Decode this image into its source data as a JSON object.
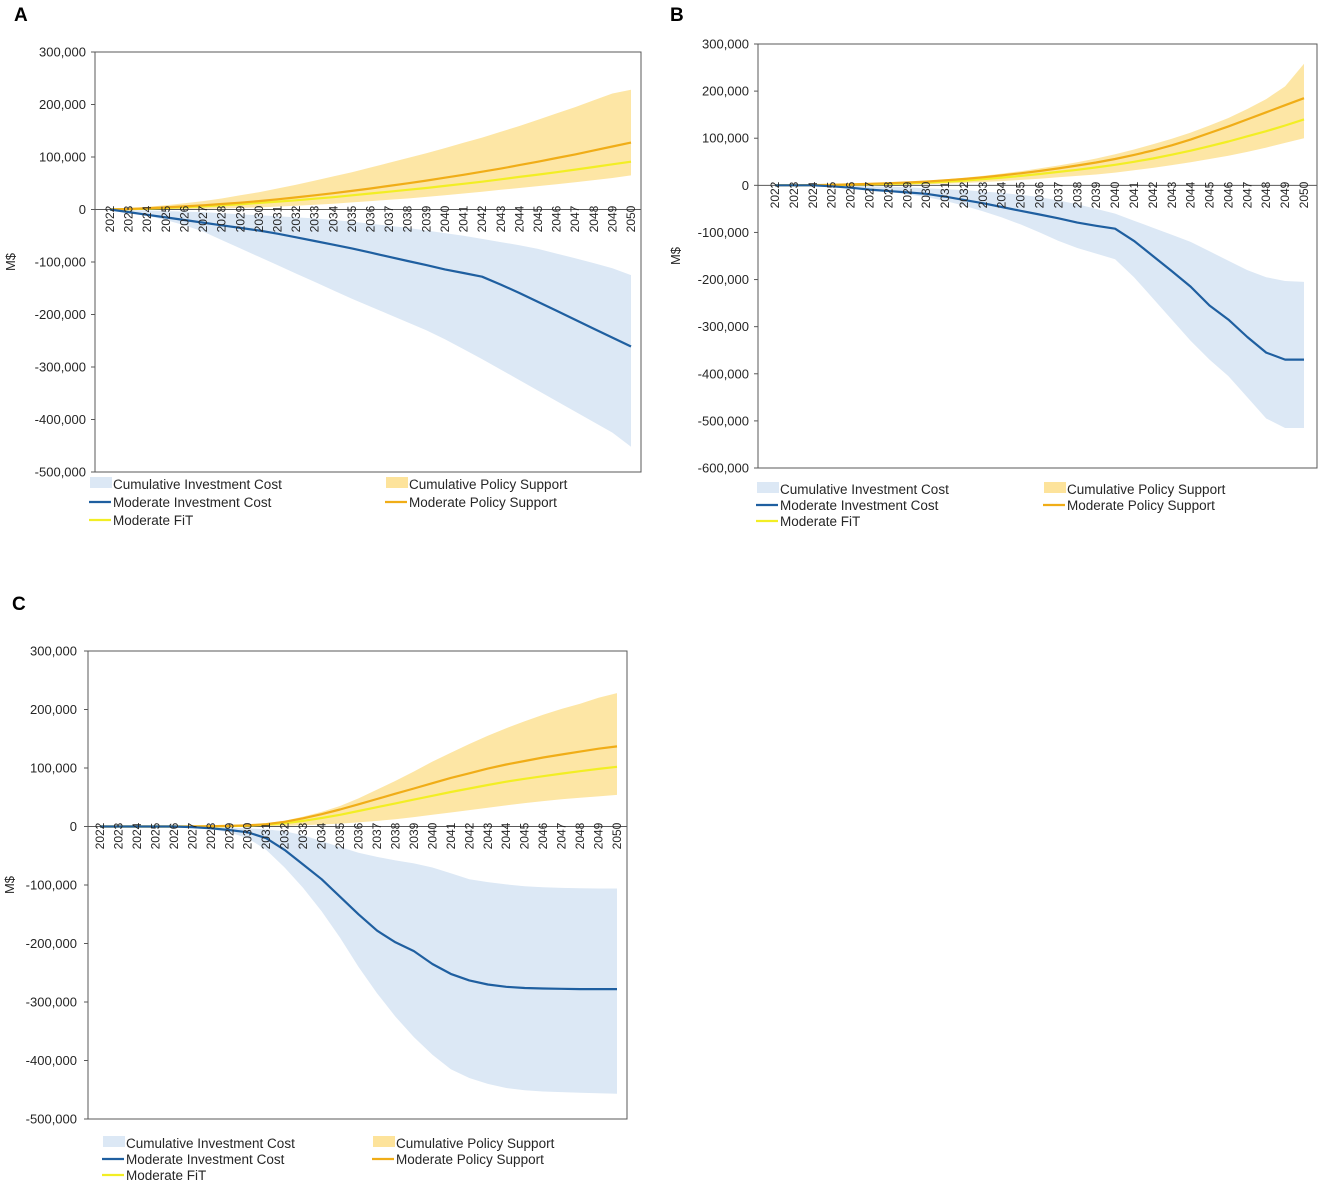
{
  "colors": {
    "band_invest": "#dce8f5",
    "band_policy": "#fde39b",
    "line_invest": "#1f5fa0",
    "line_policy": "#f0ad17",
    "line_fit": "#f2ee24",
    "axis": "#595959"
  },
  "legend_labels": {
    "band_invest": "Cumulative Investment Cost",
    "band_policy": "Cumulative Policy Support",
    "line_invest": "Moderate Investment Cost",
    "line_policy": "Moderate Policy Support",
    "line_fit": "Moderate FiT"
  },
  "chart_data": [
    {
      "panel": "A",
      "type": "line",
      "ylabel": "M$",
      "ylim": [
        -500000,
        300000
      ],
      "yticks": [
        300000,
        200000,
        100000,
        0,
        -100000,
        -200000,
        -300000,
        -400000,
        -500000
      ],
      "ytick_labels": [
        "300,000",
        "200,000",
        "100,000",
        "0",
        "-100,000",
        "-200,000",
        "-300,000",
        "-400,000",
        "-500,000"
      ],
      "categories": [
        "2022",
        "2023",
        "2024",
        "2025",
        "2026",
        "2027",
        "2028",
        "2029",
        "2030",
        "2031",
        "2032",
        "2033",
        "2034",
        "2035",
        "2036",
        "2037",
        "2038",
        "2039",
        "2040",
        "2041",
        "2042",
        "2043",
        "2044",
        "2045",
        "2046",
        "2047",
        "2048",
        "2049",
        "2050"
      ],
      "bands": [
        {
          "name": "Cumulative Investment Cost",
          "low": [
            0,
            -5000,
            -12000,
            -20000,
            -30000,
            -42000,
            -58000,
            -74000,
            -90000,
            -106000,
            -122000,
            -138000,
            -154000,
            -170000,
            -185000,
            -200000,
            -215000,
            -230000,
            -247000,
            -266000,
            -285000,
            -305000,
            -325000,
            -345000,
            -365000,
            -385000,
            -405000,
            -425000,
            -452000
          ],
          "high": [
            0,
            -1000,
            -2000,
            -3000,
            -4000,
            -5000,
            -7000,
            -9000,
            -11000,
            -13000,
            -15000,
            -17000,
            -20000,
            -23000,
            -27000,
            -31000,
            -35000,
            -40000,
            -45000,
            -50000,
            -56000,
            -62000,
            -68000,
            -75000,
            -84000,
            -93000,
            -102000,
            -112000,
            -125000
          ]
        },
        {
          "name": "Cumulative Policy Support",
          "low": [
            0,
            0,
            0,
            300,
            700,
            1300,
            2000,
            3000,
            4000,
            5500,
            7000,
            9000,
            11000,
            13500,
            16000,
            18500,
            21000,
            24000,
            27000,
            30500,
            34000,
            37500,
            41000,
            44500,
            48000,
            52000,
            56000,
            60000,
            65000
          ],
          "high": [
            0,
            2000,
            5000,
            8000,
            12000,
            16000,
            21000,
            27000,
            33000,
            40000,
            47000,
            55000,
            63000,
            71000,
            80000,
            89000,
            98000,
            107000,
            117000,
            127000,
            137000,
            148000,
            159000,
            171000,
            183000,
            195000,
            208000,
            221000,
            228000
          ]
        }
      ],
      "series": [
        {
          "name": "Moderate Investment Cost",
          "values": [
            0,
            -5000,
            -10000,
            -15000,
            -20000,
            -25000,
            -30000,
            -35000,
            -40000,
            -46000,
            -53000,
            -60000,
            -67000,
            -74000,
            -82000,
            -90000,
            -98000,
            -106000,
            -114000,
            -121000,
            -128000,
            -143000,
            -159000,
            -176000,
            -193000,
            -210000,
            -227000,
            -244000,
            -261000
          ]
        },
        {
          "name": "Moderate Policy Support",
          "values": [
            0,
            1000,
            2500,
            4000,
            6000,
            8000,
            10500,
            13000,
            16000,
            19500,
            23000,
            27000,
            31000,
            35500,
            40000,
            45000,
            50000,
            55000,
            60500,
            66000,
            72000,
            78000,
            84500,
            91000,
            98000,
            105000,
            112500,
            120000,
            127500
          ]
        },
        {
          "name": "Moderate FiT",
          "values": [
            0,
            800,
            1800,
            3000,
            4500,
            6000,
            8000,
            10000,
            12500,
            15000,
            17500,
            20500,
            23500,
            27000,
            30500,
            34000,
            37500,
            41000,
            45000,
            49000,
            53000,
            57500,
            62000,
            66500,
            71000,
            76000,
            81000,
            86000,
            91000
          ]
        }
      ]
    },
    {
      "panel": "B",
      "type": "line",
      "ylabel": "M$",
      "ylim": [
        -600000,
        300000
      ],
      "yticks": [
        300000,
        200000,
        100000,
        0,
        -100000,
        -200000,
        -300000,
        -400000,
        -500000,
        -600000
      ],
      "ytick_labels": [
        "300,000",
        "200,000",
        "100,000",
        "0",
        "-100,000",
        "-200,000",
        "-300,000",
        "-400,000",
        "-500,000",
        "-600,000"
      ],
      "categories": [
        "2022",
        "2023",
        "2024",
        "2025",
        "2026",
        "2027",
        "2028",
        "2029",
        "2030",
        "2031",
        "2032",
        "2033",
        "2034",
        "2035",
        "2036",
        "2037",
        "2038",
        "2039",
        "2040",
        "2041",
        "2042",
        "2043",
        "2044",
        "2045",
        "2046",
        "2047",
        "2048",
        "2049",
        "2050"
      ],
      "bands": [
        {
          "name": "Cumulative Investment Cost",
          "low": [
            0,
            0,
            -1000,
            -3000,
            -6000,
            -10000,
            -14000,
            -19000,
            -25000,
            -33000,
            -43000,
            -55000,
            -68000,
            -83000,
            -100000,
            -118000,
            -133000,
            -145000,
            -157000,
            -195000,
            -240000,
            -285000,
            -330000,
            -370000,
            -405000,
            -450000,
            -495000,
            -515000,
            -515000
          ],
          "high": [
            0,
            0,
            0,
            0,
            -1000,
            -2000,
            -3000,
            -4000,
            -6000,
            -8000,
            -10000,
            -13000,
            -16000,
            -20000,
            -25000,
            -32000,
            -40000,
            -50000,
            -60000,
            -75000,
            -90000,
            -105000,
            -120000,
            -140000,
            -160000,
            -180000,
            -195000,
            -203000,
            -205000
          ]
        },
        {
          "name": "Cumulative Policy Support",
          "low": [
            0,
            0,
            0,
            0,
            0,
            500,
            1000,
            1500,
            2500,
            3500,
            5000,
            7000,
            9000,
            11500,
            14000,
            17000,
            20000,
            23000,
            27000,
            32000,
            37000,
            43000,
            49000,
            56000,
            63000,
            71000,
            80000,
            90000,
            100000
          ],
          "high": [
            0,
            500,
            1000,
            1500,
            2500,
            3500,
            5000,
            7000,
            9500,
            12500,
            16000,
            20000,
            25000,
            30000,
            36000,
            42000,
            49000,
            57000,
            66000,
            76000,
            87000,
            99000,
            112000,
            127000,
            143000,
            162000,
            183000,
            210000,
            258000
          ]
        }
      ],
      "series": [
        {
          "name": "Moderate Investment Cost",
          "values": [
            0,
            0,
            0,
            -2000,
            -5000,
            -9000,
            -12000,
            -15000,
            -18000,
            -24000,
            -31000,
            -38000,
            -46000,
            -54000,
            -62000,
            -70000,
            -79000,
            -86000,
            -92000,
            -118000,
            -150000,
            -182000,
            -215000,
            -255000,
            -285000,
            -322000,
            -355000,
            -370000,
            -370000
          ]
        },
        {
          "name": "Moderate Policy Support",
          "values": [
            0,
            0,
            500,
            1000,
            2000,
            3000,
            4500,
            6000,
            8000,
            10500,
            13500,
            17000,
            21000,
            25500,
            30500,
            36000,
            42000,
            48500,
            56000,
            64500,
            74000,
            85000,
            97000,
            111000,
            125000,
            140000,
            155000,
            170000,
            185000
          ]
        },
        {
          "name": "Moderate FiT",
          "values": [
            0,
            0,
            300,
            700,
            1300,
            2000,
            3000,
            4000,
            5500,
            7500,
            10000,
            13000,
            16500,
            20000,
            24000,
            28500,
            33000,
            38000,
            43500,
            50000,
            57000,
            65000,
            73500,
            83000,
            93000,
            104000,
            115000,
            127000,
            140000
          ]
        }
      ]
    },
    {
      "panel": "C",
      "type": "line",
      "ylabel": "M$",
      "ylim": [
        -500000,
        300000
      ],
      "yticks": [
        300000,
        200000,
        100000,
        0,
        -100000,
        -200000,
        -300000,
        -400000,
        -500000
      ],
      "ytick_labels": [
        "300,000",
        "200,000",
        "100,000",
        "0",
        "-100,000",
        "-200,000",
        "-300,000",
        "-400,000",
        "-500,000"
      ],
      "categories": [
        "2022",
        "2023",
        "2024",
        "2025",
        "2026",
        "2027",
        "2028",
        "2029",
        "2030",
        "2031",
        "2032",
        "2033",
        "2034",
        "2035",
        "2036",
        "2037",
        "2038",
        "2039",
        "2040",
        "2041",
        "2042",
        "2043",
        "2044",
        "2045",
        "2046",
        "2047",
        "2048",
        "2049",
        "2050"
      ],
      "bands": [
        {
          "name": "Cumulative Investment Cost",
          "low": [
            0,
            0,
            0,
            0,
            0,
            -2000,
            -5000,
            -10000,
            -20000,
            -40000,
            -70000,
            -105000,
            -145000,
            -190000,
            -240000,
            -285000,
            -325000,
            -360000,
            -390000,
            -415000,
            -430000,
            -440000,
            -447000,
            -451000,
            -453000,
            -454000,
            -455000,
            -456000,
            -457000
          ],
          "high": [
            0,
            0,
            0,
            0,
            0,
            0,
            -1000,
            -2000,
            -3000,
            -5000,
            -8000,
            -15000,
            -25000,
            -35000,
            -45000,
            -52000,
            -58000,
            -63000,
            -70000,
            -80000,
            -90000,
            -95000,
            -99000,
            -102000,
            -104000,
            -105000,
            -105500,
            -106000,
            -106000
          ]
        },
        {
          "name": "Cumulative Policy Support",
          "low": [
            0,
            0,
            0,
            0,
            0,
            0,
            0,
            0,
            0,
            500,
            1000,
            2000,
            3500,
            5000,
            7000,
            9500,
            12500,
            16000,
            20000,
            24000,
            28000,
            32000,
            36000,
            40000,
            43500,
            46500,
            49000,
            51500,
            54000
          ],
          "high": [
            0,
            0,
            0,
            0,
            0,
            0,
            500,
            1500,
            3000,
            6000,
            10000,
            17000,
            25000,
            35000,
            48000,
            63000,
            78000,
            94000,
            111000,
            126000,
            141000,
            155000,
            168000,
            180000,
            191000,
            201000,
            210000,
            220000,
            228000
          ]
        }
      ],
      "series": [
        {
          "name": "Moderate Investment Cost",
          "values": [
            0,
            0,
            0,
            0,
            0,
            -1000,
            -3000,
            -6000,
            -10000,
            -20000,
            -40000,
            -65000,
            -90000,
            -120000,
            -150000,
            -178000,
            -198000,
            -213000,
            -235000,
            -252000,
            -263000,
            -270000,
            -274000,
            -276000,
            -277000,
            -277500,
            -278000,
            -278000,
            -278000
          ]
        },
        {
          "name": "Moderate Policy Support",
          "values": [
            0,
            0,
            0,
            0,
            0,
            0,
            500,
            1000,
            2000,
            4000,
            8000,
            14000,
            21000,
            29000,
            38000,
            47000,
            56000,
            65000,
            74000,
            83000,
            91000,
            99000,
            106000,
            112000,
            118000,
            123000,
            128000,
            133000,
            137000
          ]
        },
        {
          "name": "Moderate FiT",
          "values": [
            0,
            0,
            0,
            0,
            0,
            0,
            300,
            700,
            1500,
            3000,
            5500,
            9500,
            14500,
            20000,
            26500,
            33000,
            39500,
            46000,
            52500,
            59000,
            65000,
            71000,
            76500,
            81500,
            86000,
            90500,
            94500,
            98500,
            102000
          ]
        }
      ]
    }
  ]
}
